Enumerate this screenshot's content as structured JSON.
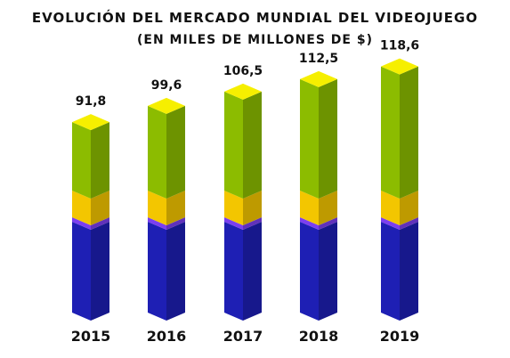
{
  "chart_data": {
    "type": "bar",
    "title": "EVOLUCIÓN DEL MERCADO MUNDIAL DEL VIDEOJUEGO",
    "subtitle": "(EN MILES DE MILLONES DE $)",
    "categories": [
      "2015",
      "2016",
      "2017",
      "2018",
      "2019"
    ],
    "values": [
      91.8,
      99.6,
      106.5,
      112.5,
      118.6
    ],
    "value_labels": [
      "91,8",
      "99,6",
      "106,5",
      "112,5",
      "118,6"
    ],
    "stack_colors": {
      "blue": "#1e1fb4",
      "purple": "#7b3ff0",
      "yellow": "#f3c600",
      "green": "#8cbc00",
      "top": "#f6ef00"
    }
  }
}
